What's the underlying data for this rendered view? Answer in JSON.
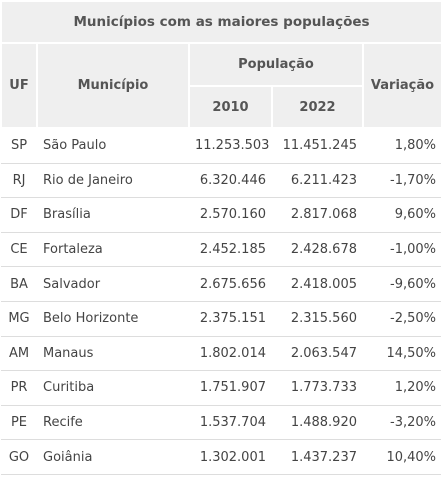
{
  "table": {
    "title": "Municípios com as maiores populações",
    "headers": {
      "uf": "UF",
      "municipio": "Município",
      "populacao": "População",
      "y2010": "2010",
      "y2022": "2022",
      "variacao": "Variação"
    },
    "rows": [
      [
        "SP",
        "São Paulo",
        "11.253.503",
        "11.451.245",
        "1,80%"
      ],
      [
        "RJ",
        "Rio de Janeiro",
        "6.320.446",
        "6.211.423",
        "-1,70%"
      ],
      [
        "DF",
        "Brasília",
        "2.570.160",
        "2.817.068",
        "9,60%"
      ],
      [
        "CE",
        "Fortaleza",
        "2.452.185",
        "2.428.678",
        "-1,00%"
      ],
      [
        "BA",
        "Salvador",
        "2.675.656",
        "2.418.005",
        "-9,60%"
      ],
      [
        "MG",
        "Belo Horizonte",
        "2.375.151",
        "2.315.560",
        "-2,50%"
      ],
      [
        "AM",
        "Manaus",
        "1.802.014",
        "2.063.547",
        "14,50%"
      ],
      [
        "PR",
        "Curitiba",
        "1.751.907",
        "1.773.733",
        "1,20%"
      ],
      [
        "PE",
        "Recife",
        "1.537.704",
        "1.488.920",
        "-3,20%"
      ],
      [
        "GO",
        "Goiânia",
        "1.302.001",
        "1.437.237",
        "10,40%"
      ]
    ]
  }
}
